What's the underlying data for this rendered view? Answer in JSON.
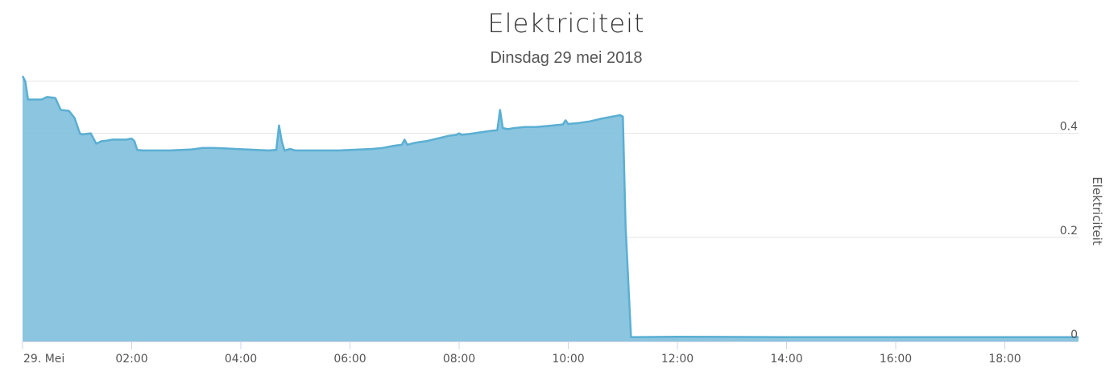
{
  "chart_data": {
    "type": "area",
    "title": "Elektriciteit",
    "subtitle": "Dinsdag 29 mei 2018",
    "ylabel": "Elektriciteit",
    "y_axis_side": "right",
    "ylim": [
      0,
      0.5
    ],
    "yticks": [
      0,
      0.2,
      0.4
    ],
    "ytick_labels": [
      "0",
      "0.2",
      "0.4"
    ],
    "xlim": [
      0,
      19.35
    ],
    "xticks": [
      0,
      2,
      4,
      6,
      8,
      10,
      12,
      14,
      16,
      18
    ],
    "xtick_labels": [
      "29. Mei",
      "02:00",
      "04:00",
      "06:00",
      "08:00",
      "10:00",
      "12:00",
      "14:00",
      "16:00",
      "18:00"
    ],
    "grid": true,
    "legend": false,
    "color": "#7fbfdb",
    "line_color": "#5aafd3",
    "series": [
      {
        "x": [
          0,
          0.05,
          0.1,
          0.3,
          0.35,
          0.45,
          0.6,
          0.7,
          0.85,
          0.95,
          1.0,
          1.05,
          1.1,
          1.25,
          1.35,
          1.45,
          1.55,
          1.65,
          1.75,
          1.9,
          2.0,
          2.05,
          2.1,
          2.2,
          2.3,
          2.5,
          2.7,
          2.9,
          3.1,
          3.3,
          3.5,
          3.7,
          3.9,
          4.1,
          4.3,
          4.5,
          4.65,
          4.7,
          4.75,
          4.8,
          4.9,
          5.0,
          5.2,
          5.4,
          5.6,
          5.8,
          6.0,
          6.2,
          6.4,
          6.6,
          6.8,
          6.95,
          7.0,
          7.05,
          7.2,
          7.4,
          7.6,
          7.8,
          7.95,
          8.0,
          8.05,
          8.2,
          8.4,
          8.6,
          8.7,
          8.75,
          8.8,
          8.9,
          9.0,
          9.2,
          9.4,
          9.6,
          9.8,
          9.9,
          9.95,
          10.0,
          10.2,
          10.4,
          10.6,
          10.8,
          10.95,
          11.0,
          11.05,
          11.15,
          12.0,
          14.0,
          16.0,
          18.0,
          19.35
        ],
        "values": [
          0.51,
          0.5,
          0.465,
          0.465,
          0.465,
          0.47,
          0.468,
          0.445,
          0.443,
          0.43,
          0.415,
          0.4,
          0.398,
          0.4,
          0.38,
          0.385,
          0.386,
          0.388,
          0.388,
          0.388,
          0.39,
          0.385,
          0.368,
          0.367,
          0.367,
          0.367,
          0.367,
          0.368,
          0.369,
          0.372,
          0.372,
          0.371,
          0.37,
          0.369,
          0.368,
          0.367,
          0.368,
          0.415,
          0.385,
          0.367,
          0.37,
          0.367,
          0.367,
          0.367,
          0.367,
          0.367,
          0.368,
          0.369,
          0.37,
          0.372,
          0.376,
          0.378,
          0.388,
          0.378,
          0.382,
          0.385,
          0.39,
          0.395,
          0.397,
          0.4,
          0.397,
          0.399,
          0.402,
          0.405,
          0.406,
          0.445,
          0.41,
          0.408,
          0.41,
          0.412,
          0.412,
          0.414,
          0.416,
          0.417,
          0.425,
          0.418,
          0.42,
          0.423,
          0.428,
          0.432,
          0.435,
          0.432,
          0.22,
          0.008,
          0.009,
          0.008,
          0.008,
          0.008,
          0.008
        ]
      }
    ]
  }
}
